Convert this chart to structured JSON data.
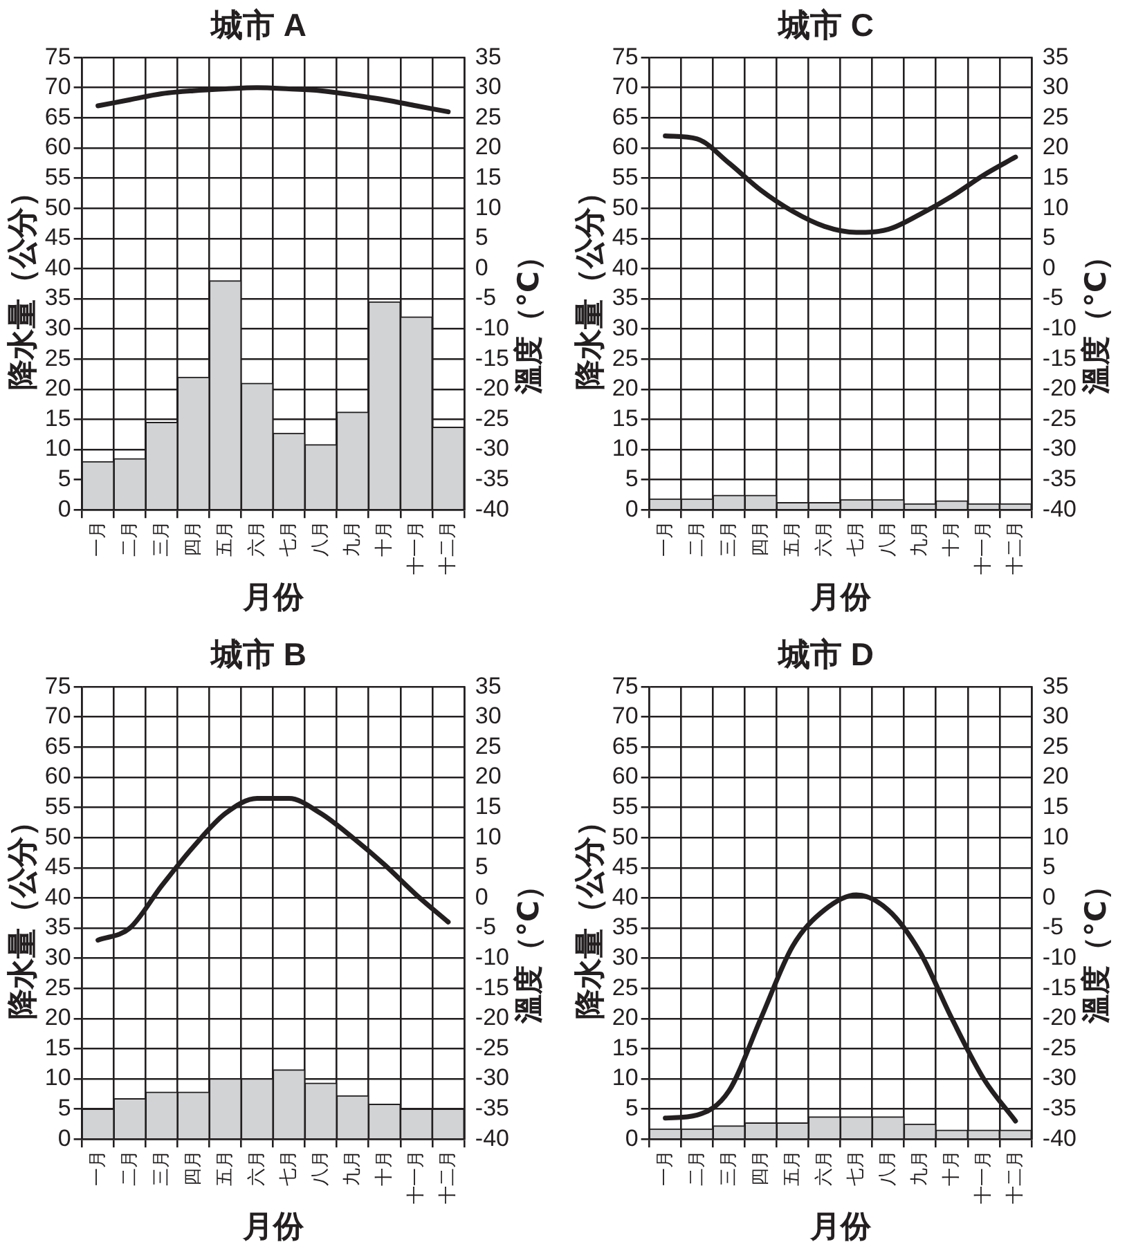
{
  "chart_data": [
    {
      "type": "bar",
      "title": "城市 A",
      "xlabel": "月份",
      "ylabel": "降水量（公分）",
      "y2label": "溫度（°C）",
      "categories": [
        "一月",
        "二月",
        "三月",
        "四月",
        "五月",
        "六月",
        "七月",
        "八月",
        "九月",
        "十月",
        "十一月",
        "十二月"
      ],
      "series": [
        {
          "type": "bar",
          "color": "#d1d3d4",
          "values": [
            8,
            8.5,
            14.5,
            22,
            38,
            21,
            12.7,
            10.8,
            16.2,
            34.5,
            32,
            13.7
          ]
        },
        {
          "type": "line",
          "axis": "y2",
          "color": "#231f20",
          "values": [
            27,
            28,
            29,
            29.5,
            29.8,
            30,
            29.8,
            29.5,
            28.8,
            28,
            27,
            26
          ]
        }
      ],
      "ylim": [
        0,
        75
      ],
      "yticks": [
        0,
        5,
        10,
        15,
        20,
        25,
        30,
        35,
        40,
        45,
        50,
        55,
        60,
        65,
        70,
        75
      ],
      "y2lim": [
        -40,
        35
      ],
      "y2ticks": [
        -40,
        -35,
        -30,
        -25,
        -20,
        -15,
        -10,
        -5,
        0,
        5,
        10,
        15,
        20,
        25,
        30,
        35
      ],
      "grid": true,
      "marker": "none"
    },
    {
      "type": "bar",
      "title": "城市 C",
      "xlabel": "月份",
      "ylabel": "降水量（公分）",
      "y2label": "溫度（°C）",
      "categories": [
        "一月",
        "二月",
        "三月",
        "四月",
        "五月",
        "六月",
        "七月",
        "八月",
        "九月",
        "十月",
        "十一月",
        "十二月"
      ],
      "series": [
        {
          "type": "bar",
          "color": "#d1d3d4",
          "values": [
            1.8,
            1.8,
            2.4,
            2.4,
            1.2,
            1.2,
            1.7,
            1.7,
            1,
            1.5,
            1,
            1
          ]
        },
        {
          "type": "line",
          "axis": "y2",
          "color": "#231f20",
          "values": [
            22,
            21.5,
            17.5,
            13,
            9.5,
            7,
            6,
            6.5,
            9,
            12,
            15.5,
            18.5
          ]
        }
      ],
      "ylim": [
        0,
        75
      ],
      "yticks": [
        0,
        5,
        10,
        15,
        20,
        25,
        30,
        35,
        40,
        45,
        50,
        55,
        60,
        65,
        70,
        75
      ],
      "y2lim": [
        -40,
        35
      ],
      "y2ticks": [
        -40,
        -35,
        -30,
        -25,
        -20,
        -15,
        -10,
        -5,
        0,
        5,
        10,
        15,
        20,
        25,
        30,
        35
      ],
      "grid": true,
      "marker": "none"
    },
    {
      "type": "bar",
      "title": "城市 B",
      "xlabel": "月份",
      "ylabel": "降水量（公分）",
      "y2label": "溫度（°C）",
      "categories": [
        "一月",
        "二月",
        "三月",
        "四月",
        "五月",
        "六月",
        "七月",
        "八月",
        "九月",
        "十月",
        "十一月",
        "十二月"
      ],
      "series": [
        {
          "type": "bar",
          "color": "#d1d3d4",
          "values": [
            5,
            6.7,
            7.8,
            7.8,
            10,
            10,
            11.5,
            9.3,
            7.2,
            5.8,
            5,
            5
          ]
        },
        {
          "type": "line",
          "axis": "y2",
          "color": "#231f20",
          "values": [
            -7,
            -5,
            2,
            8.5,
            14,
            16.5,
            16.5,
            14,
            10,
            5.5,
            0.5,
            -4
          ]
        }
      ],
      "ylim": [
        0,
        75
      ],
      "yticks": [
        0,
        5,
        10,
        15,
        20,
        25,
        30,
        35,
        40,
        45,
        50,
        55,
        60,
        65,
        70,
        75
      ],
      "y2lim": [
        -40,
        35
      ],
      "y2ticks": [
        -40,
        -35,
        -30,
        -25,
        -20,
        -15,
        -10,
        -5,
        0,
        5,
        10,
        15,
        20,
        25,
        30,
        35
      ],
      "grid": true,
      "marker": "none"
    },
    {
      "type": "bar",
      "title": "城市 D",
      "xlabel": "月份",
      "ylabel": "降水量（公分）",
      "y2label": "溫度（°C）",
      "categories": [
        "一月",
        "二月",
        "三月",
        "四月",
        "五月",
        "六月",
        "七月",
        "八月",
        "九月",
        "十月",
        "十一月",
        "十二月"
      ],
      "series": [
        {
          "type": "bar",
          "color": "#d1d3d4",
          "values": [
            1.7,
            1.7,
            2.2,
            2.7,
            2.7,
            3.7,
            3.7,
            3.7,
            2.5,
            1.5,
            1.5,
            1.5
          ]
        },
        {
          "type": "line",
          "axis": "y2",
          "color": "#231f20",
          "values": [
            -36.5,
            -36,
            -32,
            -20,
            -8,
            -2,
            0.5,
            -2,
            -9,
            -20,
            -30,
            -37
          ]
        }
      ],
      "ylim": [
        0,
        75
      ],
      "yticks": [
        0,
        5,
        10,
        15,
        20,
        25,
        30,
        35,
        40,
        45,
        50,
        55,
        60,
        65,
        70,
        75
      ],
      "y2lim": [
        -40,
        35
      ],
      "y2ticks": [
        -40,
        -35,
        -30,
        -25,
        -20,
        -15,
        -10,
        -5,
        0,
        5,
        10,
        15,
        20,
        25,
        30,
        35
      ],
      "grid": true,
      "marker": "none"
    }
  ]
}
